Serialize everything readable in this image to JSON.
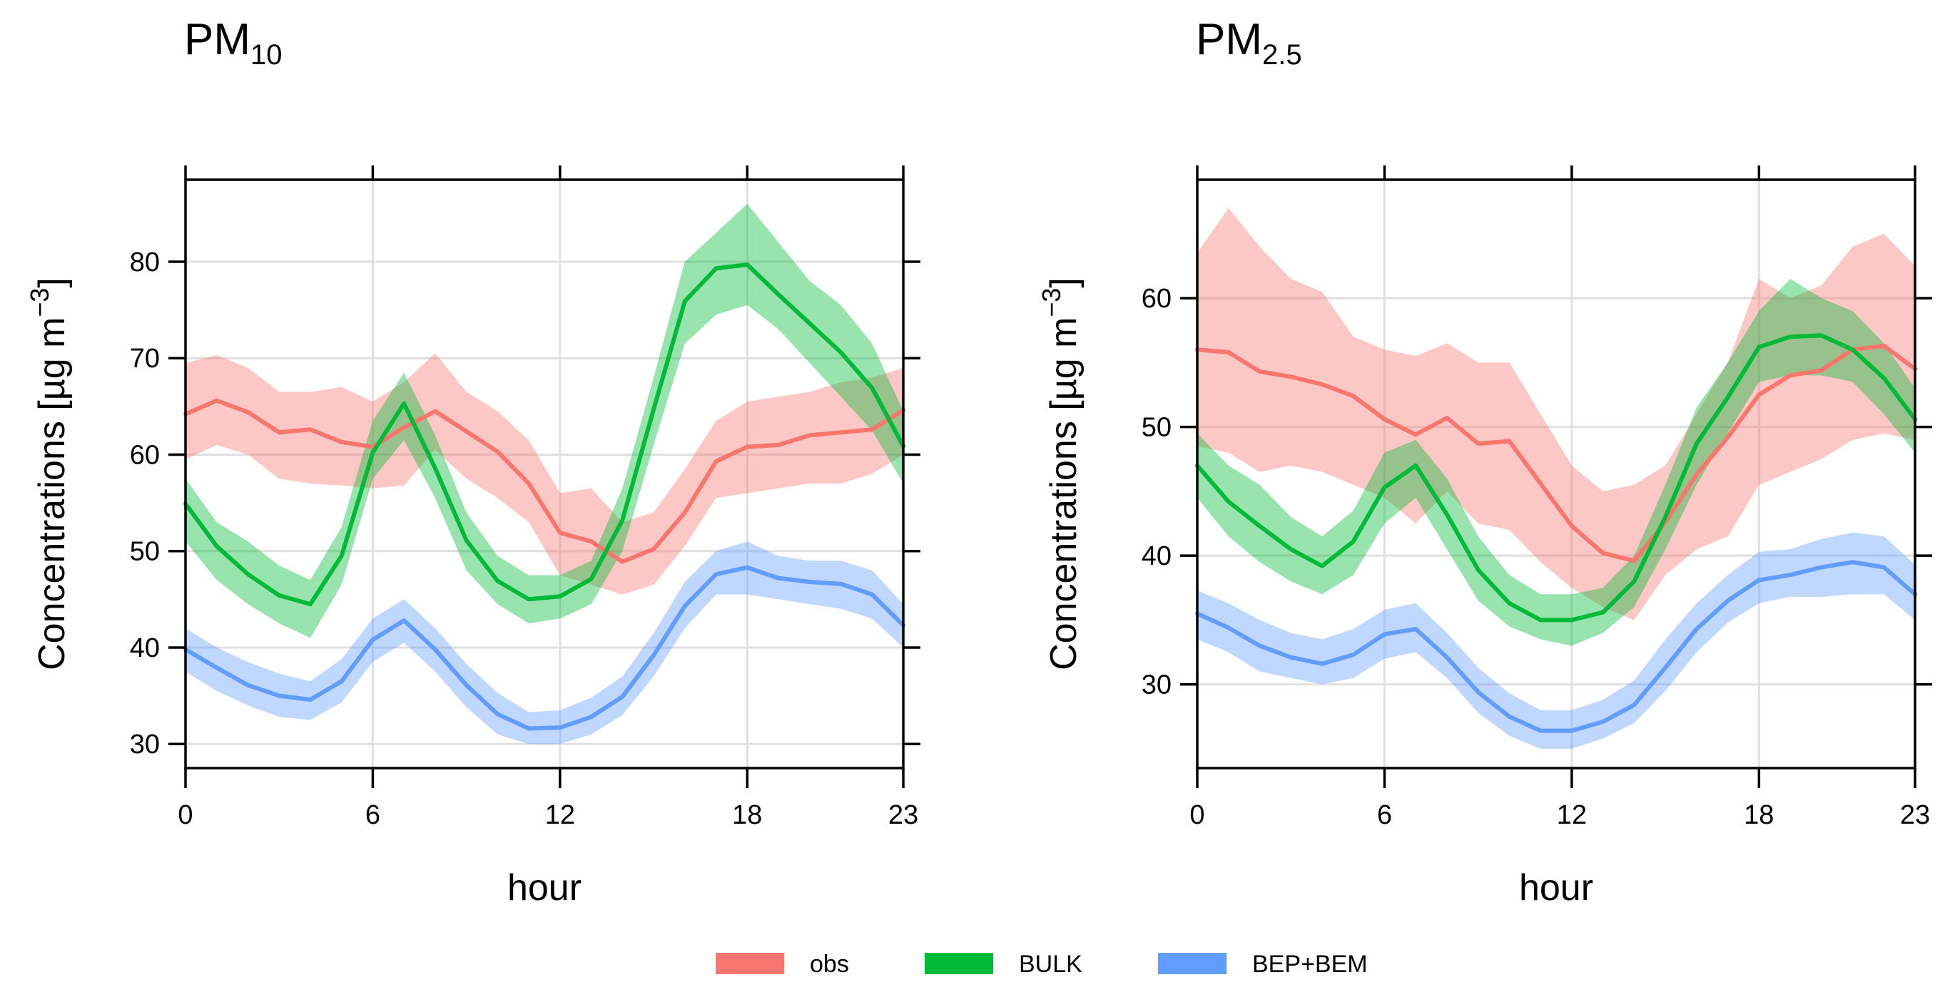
{
  "colors": {
    "obs": "#F8766D",
    "BULK": "#00BA38",
    "BEP+BEM": "#619CFF"
  },
  "legend": [
    {
      "key": "obs",
      "label": "obs"
    },
    {
      "key": "BULK",
      "label": "BULK"
    },
    {
      "key": "BEP+BEM",
      "label": "BEP+BEM"
    }
  ],
  "chart_data": [
    {
      "type": "line",
      "title": "PM",
      "title_sub": "10",
      "xlabel": "hour",
      "ylabel": "Concentrations [µg m",
      "ylabel_sup": "−3",
      "ylabel_close": "]",
      "xlim": [
        0,
        23
      ],
      "ylim": [
        27.5,
        88.5
      ],
      "xticks": [
        0,
        6,
        12,
        18,
        23
      ],
      "yticks": [
        30,
        40,
        50,
        60,
        70,
        80
      ],
      "x": [
        0,
        1,
        2,
        3,
        4,
        5,
        6,
        7,
        8,
        9,
        10,
        11,
        12,
        13,
        14,
        15,
        16,
        17,
        18,
        19,
        20,
        21,
        22,
        23
      ],
      "series": [
        {
          "name": "obs",
          "values": [
            64.2,
            65.6,
            64.4,
            62.3,
            62.6,
            61.3,
            60.8,
            62.8,
            64.5,
            62.4,
            60.3,
            57.0,
            51.9,
            51.0,
            48.9,
            50.2,
            54.0,
            59.3,
            60.8,
            61.0,
            62.0,
            62.3,
            62.6,
            64.6
          ],
          "lower": [
            59.5,
            61.0,
            60.0,
            57.5,
            57.0,
            56.8,
            56.5,
            56.8,
            60.5,
            57.5,
            55.5,
            53.0,
            47.5,
            46.5,
            45.5,
            46.5,
            50.5,
            55.5,
            56.0,
            56.5,
            57.0,
            57.0,
            58.0,
            60.0
          ],
          "upper": [
            69.5,
            70.3,
            69.0,
            66.5,
            66.5,
            67.0,
            65.5,
            67.5,
            70.5,
            66.5,
            64.5,
            61.5,
            56.0,
            56.5,
            53.0,
            54.0,
            58.5,
            63.5,
            65.5,
            66.0,
            66.5,
            67.5,
            68.0,
            69.0
          ]
        },
        {
          "name": "BULK",
          "values": [
            54.9,
            50.5,
            47.6,
            45.4,
            44.5,
            49.5,
            60.2,
            65.3,
            58.6,
            51.1,
            46.9,
            45.0,
            45.3,
            47.1,
            53.2,
            64.7,
            75.9,
            79.3,
            79.7,
            76.6,
            73.6,
            70.6,
            66.9,
            60.9
          ],
          "lower": [
            51.0,
            47.0,
            44.5,
            42.5,
            41.0,
            46.5,
            57.5,
            61.5,
            55.5,
            48.0,
            44.5,
            42.5,
            43.0,
            44.5,
            50.0,
            61.0,
            71.5,
            74.5,
            75.5,
            73.0,
            69.5,
            66.0,
            62.5,
            57.0
          ],
          "upper": [
            57.5,
            53.0,
            51.0,
            48.5,
            47.0,
            52.5,
            63.5,
            68.5,
            62.0,
            54.0,
            49.5,
            47.5,
            47.5,
            49.0,
            56.5,
            68.0,
            80.0,
            83.0,
            86.0,
            82.0,
            78.0,
            75.5,
            71.5,
            64.5
          ]
        },
        {
          "name": "BEP+BEM",
          "values": [
            39.8,
            37.9,
            36.1,
            35.0,
            34.6,
            36.5,
            40.8,
            42.8,
            39.8,
            36.1,
            33.1,
            31.6,
            31.7,
            32.8,
            34.9,
            39.2,
            44.3,
            47.6,
            48.3,
            47.2,
            46.8,
            46.6,
            45.5,
            42.3
          ],
          "lower": [
            37.5,
            35.5,
            34.0,
            32.8,
            32.5,
            34.3,
            38.5,
            40.5,
            37.5,
            33.8,
            31.0,
            30.0,
            30.0,
            31.0,
            33.0,
            37.0,
            42.0,
            45.5,
            45.5,
            45.0,
            44.5,
            44.0,
            43.0,
            40.0
          ],
          "upper": [
            42.0,
            40.0,
            38.5,
            37.3,
            36.5,
            38.8,
            43.0,
            45.0,
            42.0,
            38.3,
            35.3,
            33.3,
            33.5,
            34.8,
            37.0,
            41.5,
            46.8,
            50.0,
            51.0,
            49.5,
            49.0,
            49.0,
            48.0,
            44.5
          ]
        }
      ]
    },
    {
      "type": "line",
      "title": "PM",
      "title_sub": "2.5",
      "xlabel": "hour",
      "ylabel": "Concentrations [µg m",
      "ylabel_sup": "−3",
      "ylabel_close": "]",
      "xlim": [
        0,
        23
      ],
      "ylim": [
        23.5,
        69.2
      ],
      "xticks": [
        0,
        6,
        12,
        18,
        23
      ],
      "yticks": [
        30,
        40,
        50,
        60
      ],
      "x": [
        0,
        1,
        2,
        3,
        4,
        5,
        6,
        7,
        8,
        9,
        10,
        11,
        12,
        13,
        14,
        15,
        16,
        17,
        18,
        19,
        20,
        21,
        22,
        23
      ],
      "series": [
        {
          "name": "obs",
          "values": [
            56.0,
            55.8,
            54.3,
            53.9,
            53.3,
            52.4,
            50.6,
            49.4,
            50.7,
            48.7,
            48.9,
            45.6,
            42.3,
            40.2,
            39.6,
            42.6,
            46.3,
            49.2,
            52.5,
            54.0,
            54.4,
            56.0,
            56.3,
            54.5
          ],
          "lower": [
            48.5,
            48.0,
            46.5,
            47.0,
            46.5,
            45.5,
            44.5,
            42.5,
            45.0,
            42.5,
            42.0,
            39.5,
            37.5,
            36.0,
            35.0,
            38.5,
            40.5,
            41.5,
            45.5,
            46.5,
            47.5,
            49.0,
            49.5,
            49.0
          ],
          "upper": [
            63.5,
            67.0,
            64.0,
            61.5,
            60.5,
            57.0,
            56.0,
            55.5,
            56.5,
            55.0,
            55.0,
            51.0,
            47.0,
            45.0,
            45.5,
            47.0,
            51.0,
            55.0,
            61.5,
            60.0,
            61.0,
            64.0,
            65.0,
            62.5
          ]
        },
        {
          "name": "BULK",
          "values": [
            47.0,
            44.2,
            42.3,
            40.5,
            39.2,
            41.1,
            45.3,
            47.0,
            43.2,
            38.9,
            36.3,
            35.0,
            35.0,
            35.6,
            38.0,
            43.0,
            48.7,
            52.3,
            56.2,
            57.0,
            57.1,
            56.0,
            53.8,
            50.6
          ],
          "lower": [
            44.5,
            41.5,
            39.5,
            38.0,
            37.0,
            38.5,
            42.5,
            44.5,
            40.5,
            36.5,
            34.5,
            33.5,
            33.0,
            34.0,
            36.0,
            40.5,
            45.5,
            49.5,
            53.5,
            54.0,
            54.0,
            53.5,
            51.0,
            48.0
          ],
          "upper": [
            49.5,
            47.0,
            45.5,
            43.0,
            41.5,
            43.5,
            48.0,
            49.0,
            46.0,
            41.5,
            38.5,
            37.0,
            37.0,
            37.5,
            40.0,
            45.5,
            51.5,
            55.0,
            59.0,
            61.5,
            60.0,
            59.0,
            56.5,
            53.0
          ]
        },
        {
          "name": "BEP+BEM",
          "values": [
            35.5,
            34.4,
            33.0,
            32.1,
            31.6,
            32.3,
            33.9,
            34.3,
            32.1,
            29.4,
            27.5,
            26.4,
            26.4,
            27.1,
            28.4,
            31.3,
            34.3,
            36.5,
            38.1,
            38.5,
            39.1,
            39.5,
            39.1,
            37.0
          ],
          "lower": [
            33.5,
            32.5,
            31.0,
            30.5,
            30.0,
            30.5,
            32.0,
            32.5,
            30.5,
            27.8,
            26.0,
            25.0,
            25.0,
            25.8,
            27.0,
            29.5,
            32.5,
            34.8,
            36.3,
            36.8,
            36.8,
            37.0,
            37.0,
            35.0
          ],
          "upper": [
            37.3,
            36.3,
            35.0,
            34.0,
            33.5,
            34.3,
            35.8,
            36.3,
            34.0,
            31.3,
            29.3,
            28.0,
            28.0,
            28.8,
            30.3,
            33.5,
            36.3,
            38.5,
            40.3,
            40.5,
            41.3,
            41.8,
            41.5,
            39.3
          ]
        }
      ]
    }
  ]
}
